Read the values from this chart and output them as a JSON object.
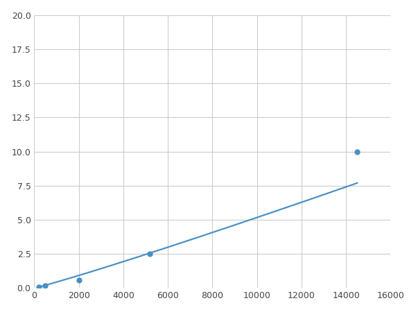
{
  "x": [
    200,
    500,
    2000,
    5200,
    14500
  ],
  "y": [
    0.1,
    0.2,
    0.6,
    2.5,
    10.0
  ],
  "line_color": "#4a90c4",
  "marker_color": "#4a90c4",
  "marker_size": 5,
  "line_width": 1.6,
  "xlim": [
    0,
    16000
  ],
  "ylim": [
    0,
    20.0
  ],
  "xticks": [
    0,
    2000,
    4000,
    6000,
    8000,
    10000,
    12000,
    14000,
    16000
  ],
  "yticks": [
    0.0,
    2.5,
    5.0,
    7.5,
    10.0,
    12.5,
    15.0,
    17.5,
    20.0
  ],
  "grid_color": "#cccccc",
  "background_color": "#ffffff",
  "figure_background": "#ffffff"
}
